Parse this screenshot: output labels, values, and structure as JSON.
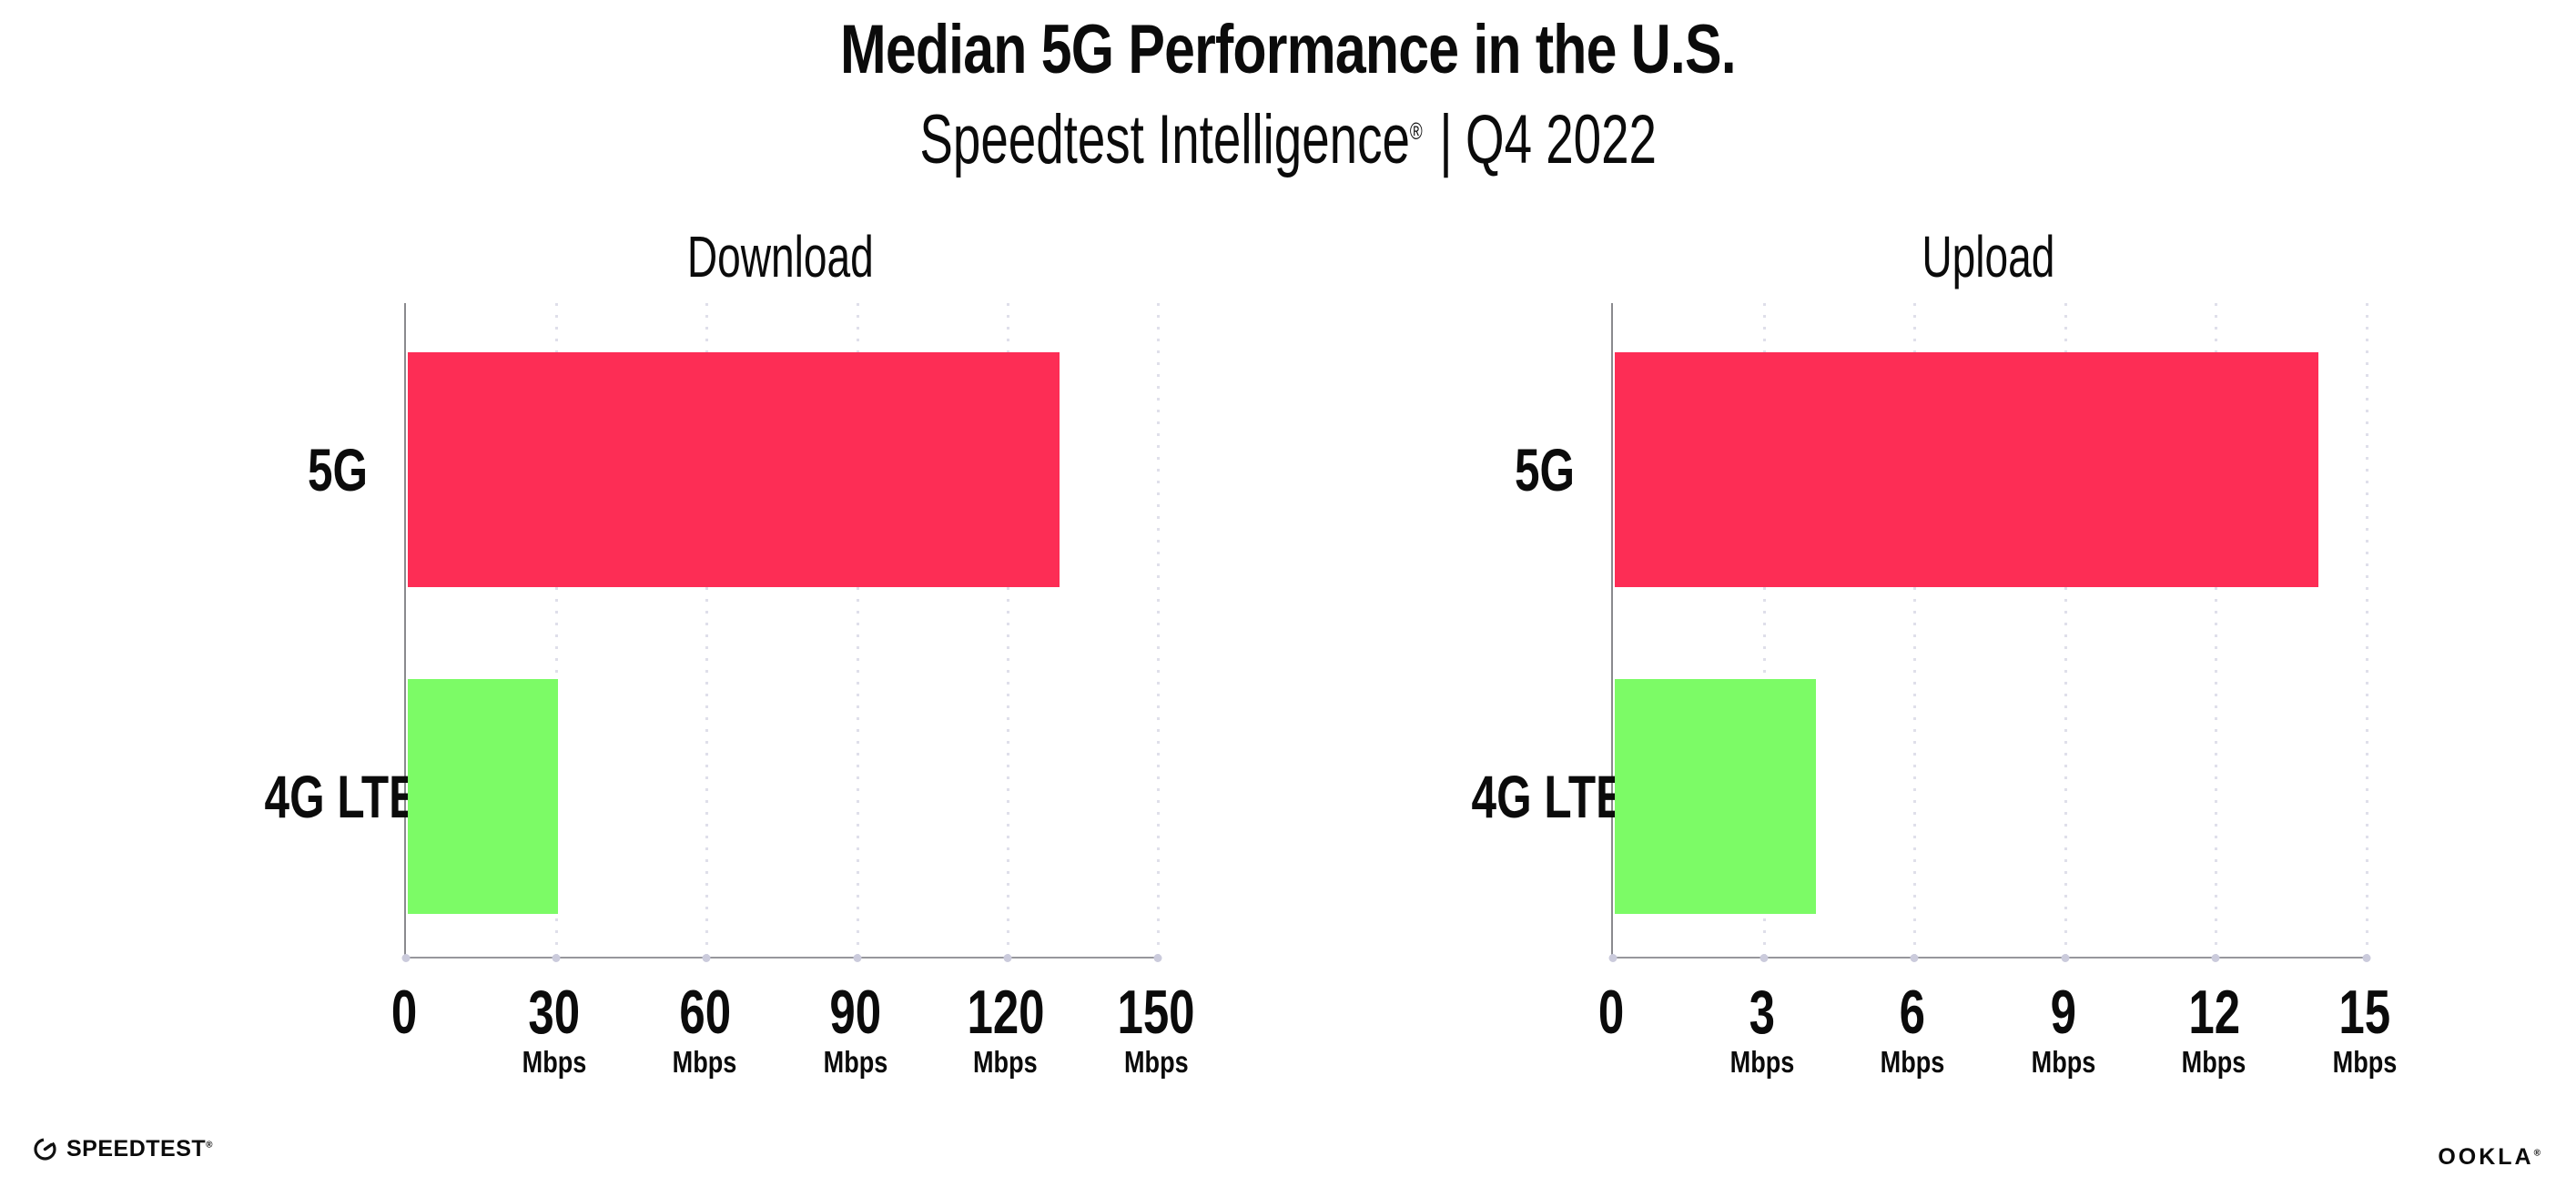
{
  "header": {
    "title": "Median 5G Performance in the U.S.",
    "subtitle_brand": "Speedtest Intelligence",
    "registered_mark": "®",
    "separator": "|",
    "subtitle_period": "Q4 2022"
  },
  "chart_data": [
    {
      "type": "bar",
      "orientation": "horizontal",
      "title": "Download",
      "categories": [
        "5G",
        "4G LTE"
      ],
      "values": [
        130,
        30
      ],
      "unit": "Mbps",
      "xlim": [
        0,
        150
      ],
      "xticks": [
        0,
        30,
        60,
        90,
        120,
        150
      ],
      "bar_colors": [
        "#FD2D55",
        "#7CFB66"
      ],
      "grid": "vertical-dotted",
      "legend": "none"
    },
    {
      "type": "bar",
      "orientation": "horizontal",
      "title": "Upload",
      "categories": [
        "5G",
        "4G LTE"
      ],
      "values": [
        14,
        4
      ],
      "unit": "Mbps",
      "xlim": [
        0,
        15
      ],
      "xticks": [
        0,
        3,
        6,
        9,
        12,
        15
      ],
      "bar_colors": [
        "#FD2D55",
        "#7CFB66"
      ],
      "grid": "vertical-dotted",
      "legend": "none"
    }
  ],
  "footer": {
    "speedtest_logo_text": "SPEEDTEST",
    "speedtest_registered_mark": "®",
    "ookla_logo_text": "OOKLA",
    "ookla_registered_mark": "®"
  },
  "colors": {
    "bar_5g": "#FD2D55",
    "bar_4g_lte": "#7CFB66",
    "gridline": "#DFDFEA",
    "axis_line": "#8A8A8E",
    "tick_dot": "#CBCBDC",
    "text": "#0B0B0B",
    "background": "#FFFFFF"
  }
}
